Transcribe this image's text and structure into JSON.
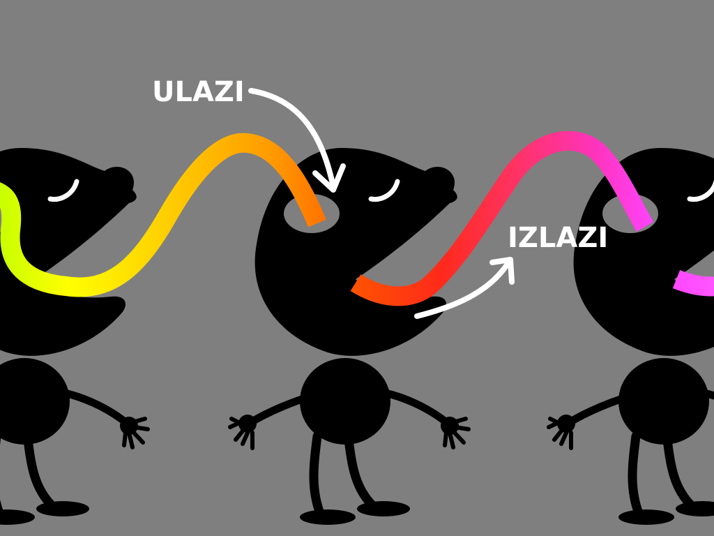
{
  "labels": {
    "in": "ULAZI",
    "out": "IZLAZI"
  },
  "colors": {
    "background": "#7f7f7f",
    "figure": "#000000",
    "arrow": "#ffffff",
    "tube_1": [
      "#c8ff00",
      "#ffff00",
      "#ffcc00",
      "#ff9900",
      "#ff6600"
    ],
    "tube_2": [
      "#ff5500",
      "#ff2a1a",
      "#ff3366",
      "#ff33bb",
      "#ff44ff"
    ],
    "tube_3": [
      "#ff44ff",
      "#ff55ff"
    ]
  },
  "figures": [
    {
      "name": "figure-left"
    },
    {
      "name": "figure-center"
    },
    {
      "name": "figure-right"
    }
  ],
  "arrows": [
    {
      "name": "arrow-in",
      "icon": "curved-arrow-down-icon"
    },
    {
      "name": "arrow-out",
      "icon": "curved-arrow-up-icon"
    }
  ]
}
